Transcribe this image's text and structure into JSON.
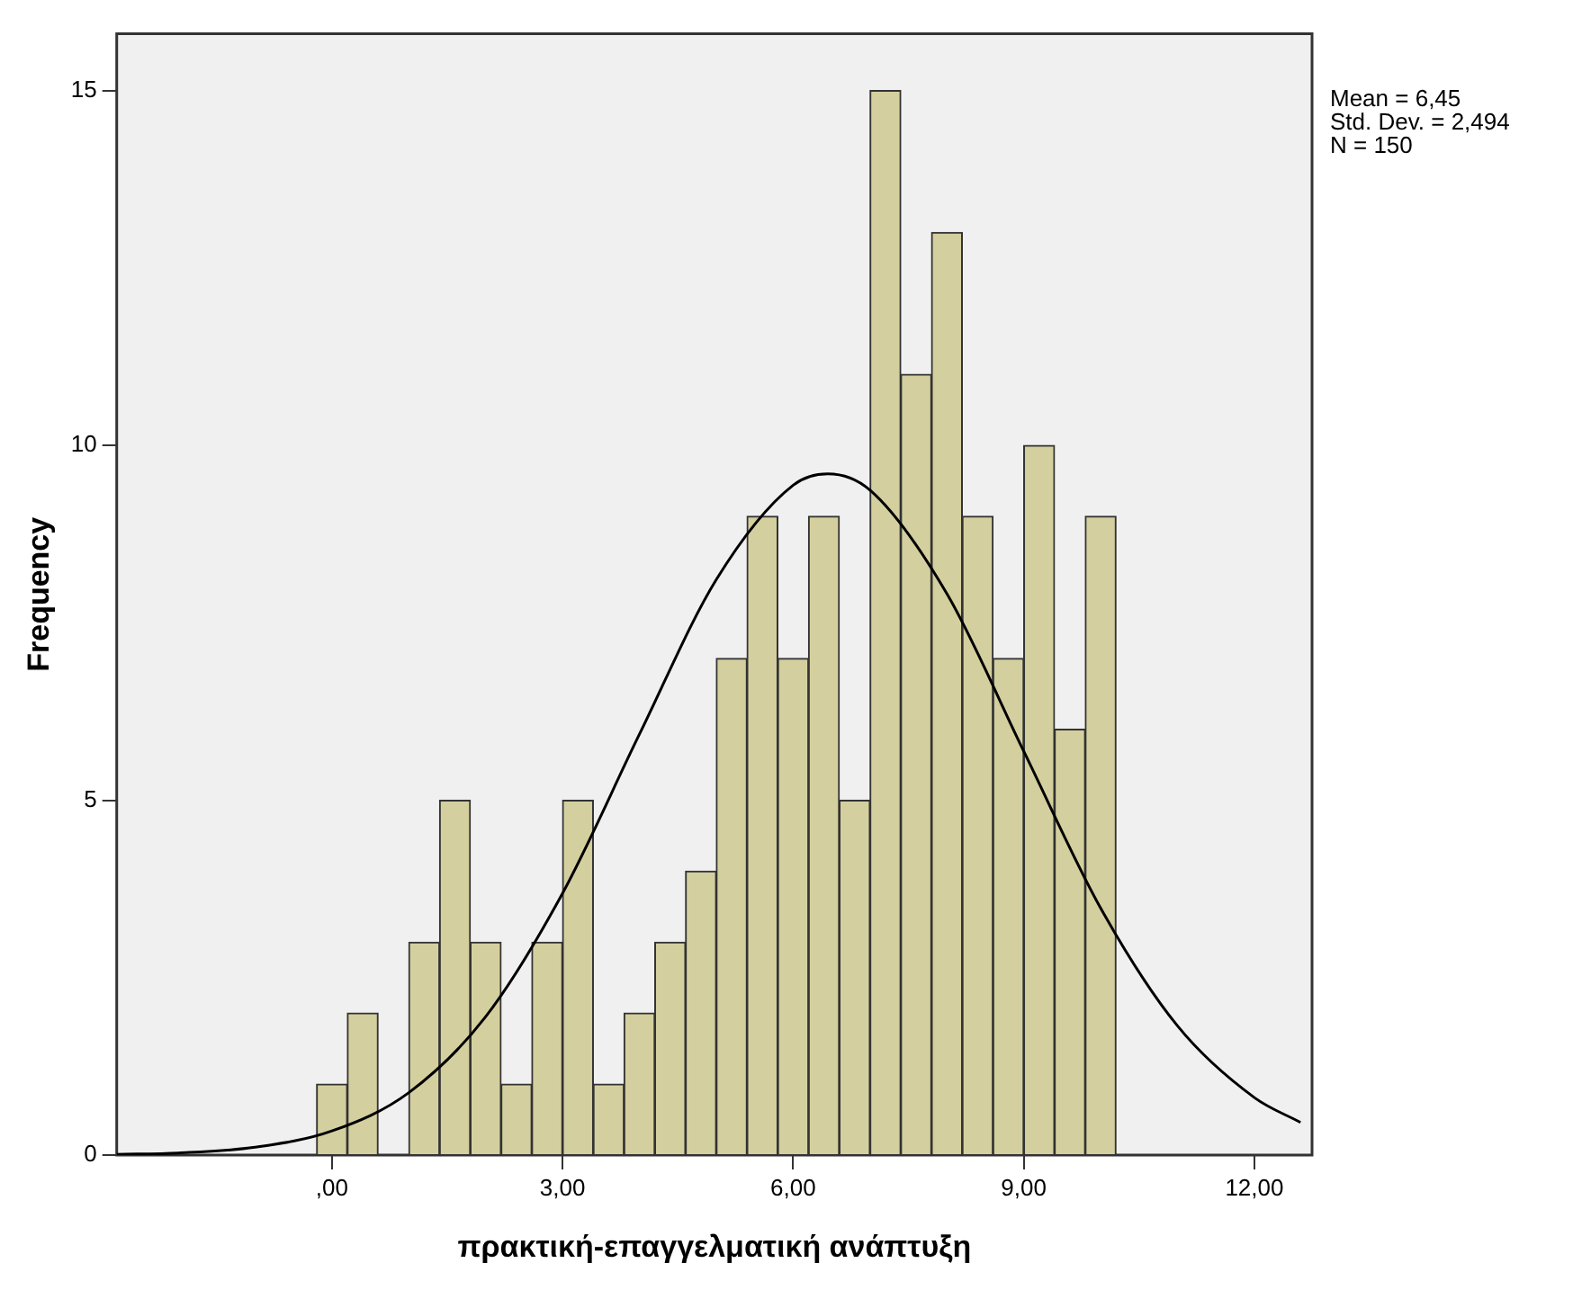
{
  "chart_data": {
    "type": "histogram",
    "xlabel": "πρακτική-επαγγελματική ανάπτυξη",
    "ylabel": "Frequency",
    "bins": [
      -0.2,
      0.2,
      0.6,
      1.0,
      1.4,
      1.8,
      2.2,
      2.6,
      3.0,
      3.4,
      3.8,
      4.2,
      4.6,
      5.0,
      5.4,
      5.8,
      6.2,
      6.6,
      7.0,
      7.4,
      7.8,
      8.2,
      8.6,
      9.0,
      9.4,
      9.8,
      10.2
    ],
    "values": [
      1,
      2,
      0,
      3,
      5,
      3,
      1,
      3,
      5,
      1,
      2,
      3,
      4,
      7,
      9,
      7,
      9,
      5,
      15,
      11,
      13,
      9,
      7,
      10,
      6,
      9
    ],
    "color": "#d4cf9e",
    "series": [
      {
        "type": "line",
        "color": "#000000",
        "marker": "none",
        "x": [
          -2.8,
          -2,
          -1,
          0,
          1,
          2,
          3,
          4,
          5,
          6,
          6.45,
          7,
          8,
          9,
          10,
          11,
          12,
          12.6
        ],
        "values": [
          0.01,
          0.03,
          0.11,
          0.34,
          0.88,
          1.95,
          3.69,
          5.93,
          8.11,
          9.44,
          9.6,
          9.37,
          7.91,
          5.69,
          3.48,
          1.82,
          0.81,
          0.46
        ]
      }
    ],
    "xlim": [
      -2.8,
      12.75
    ],
    "xticks": [
      {
        "value": 0,
        "label": ",00"
      },
      {
        "value": 3,
        "label": "3,00"
      },
      {
        "value": 6,
        "label": "6,00"
      },
      {
        "value": 9,
        "label": "9,00"
      },
      {
        "value": 12,
        "label": "12,00"
      }
    ],
    "ylim": [
      0,
      15.8
    ],
    "yticks": [
      0,
      5,
      10,
      15
    ],
    "grid": false,
    "legend": false,
    "annotations": [
      "Mean = 6,45",
      "Std. Dev. = 2,494",
      "N = 150"
    ]
  }
}
